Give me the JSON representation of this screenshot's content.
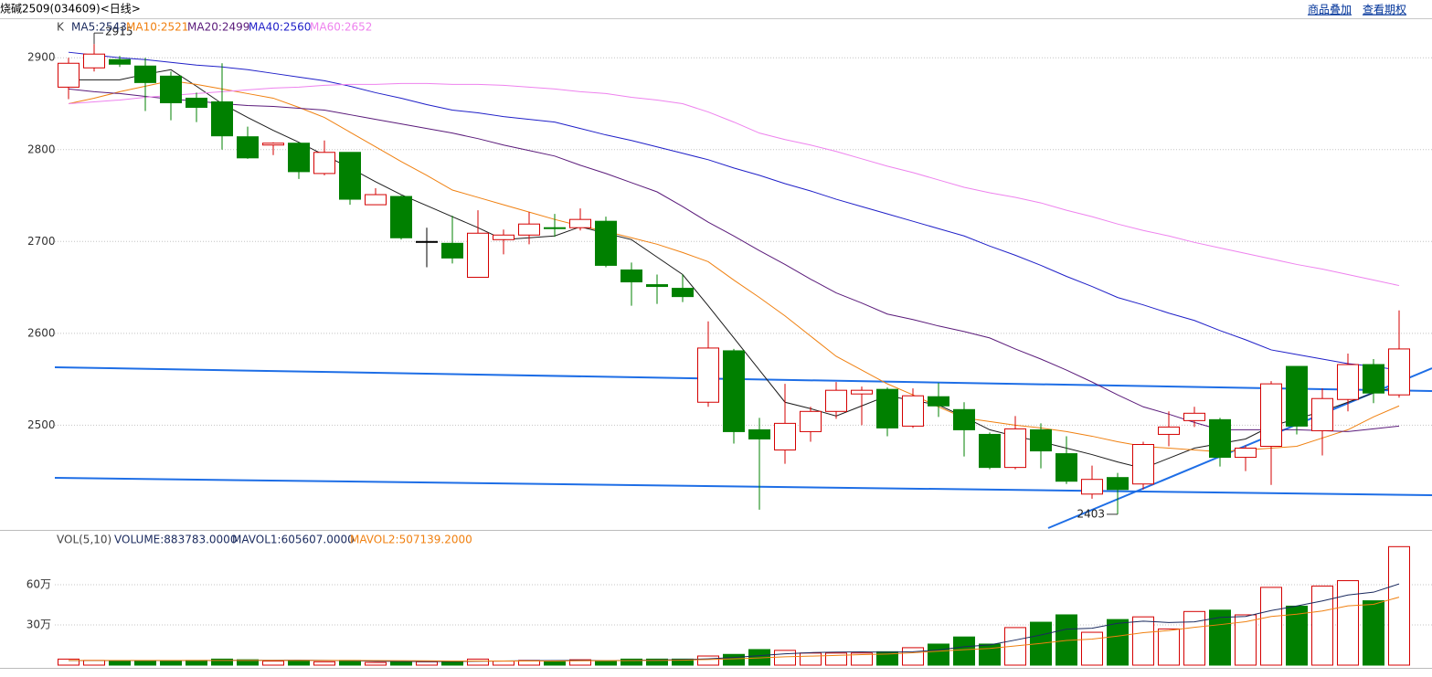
{
  "header": {
    "title": "烧碱2509(034609)<日线>",
    "links": [
      "商品叠加",
      "查看期权"
    ]
  },
  "chart_data": [
    {
      "type": "candlestick",
      "legend_prefix": "K",
      "ylim": [
        2386,
        2941
      ],
      "yticks": [
        2500,
        2600,
        2700,
        2800,
        2900
      ],
      "grid": true,
      "up_color": "#d40000",
      "down_color": "#008000",
      "flat_color": "#000000",
      "open": [
        2868,
        2889,
        2898,
        2891,
        2880,
        2856,
        2852,
        2814,
        2805,
        2807,
        2774,
        2797,
        2740,
        2749,
        2700,
        2698,
        2661,
        2702,
        2707,
        2715,
        2715,
        2722,
        2669,
        2653,
        2649,
        2525,
        2581,
        2495,
        2473,
        2493,
        2515,
        2534,
        2539,
        2499,
        2531,
        2517,
        2490,
        2454,
        2495,
        2469,
        2425,
        2443,
        2436,
        2490,
        2505,
        2506,
        2465,
        2477,
        2564,
        2494,
        2528,
        2566,
        2533
      ],
      "high": [
        2900,
        2915,
        2902,
        2900,
        2885,
        2862,
        2894,
        2825,
        2808,
        2808,
        2810,
        2797,
        2758,
        2750,
        2715,
        2728,
        2734,
        2713,
        2732,
        2730,
        2736,
        2727,
        2677,
        2664,
        2664,
        2613,
        2583,
        2508,
        2545,
        2520,
        2547,
        2542,
        2541,
        2540,
        2546,
        2525,
        2492,
        2510,
        2502,
        2488,
        2456,
        2448,
        2482,
        2515,
        2520,
        2508,
        2478,
        2548,
        2564,
        2540,
        2578,
        2572,
        2625
      ],
      "low": [
        2855,
        2885,
        2890,
        2842,
        2832,
        2830,
        2800,
        2790,
        2794,
        2768,
        2772,
        2740,
        2740,
        2702,
        2672,
        2676,
        2661,
        2686,
        2697,
        2705,
        2712,
        2672,
        2630,
        2632,
        2634,
        2520,
        2480,
        2408,
        2458,
        2482,
        2507,
        2500,
        2488,
        2497,
        2509,
        2466,
        2452,
        2452,
        2453,
        2436,
        2420,
        2403,
        2430,
        2477,
        2498,
        2455,
        2450,
        2435,
        2490,
        2467,
        2515,
        2524,
        2530
      ],
      "close": [
        2894,
        2904,
        2893,
        2873,
        2851,
        2846,
        2815,
        2791,
        2807,
        2776,
        2797,
        2746,
        2751,
        2704,
        2700,
        2682,
        2709,
        2707,
        2719,
        2714,
        2724,
        2674,
        2656,
        2651,
        2640,
        2584,
        2493,
        2485,
        2502,
        2515,
        2538,
        2538,
        2497,
        2532,
        2521,
        2495,
        2454,
        2496,
        2472,
        2439,
        2441,
        2430,
        2479,
        2498,
        2513,
        2465,
        2475,
        2545,
        2499,
        2529,
        2566,
        2535,
        2583
      ],
      "high_label": 2915,
      "low_label": 2403,
      "series": [
        {
          "name": "MA5:2543",
          "color": "#1a1a1a",
          "values": [
            2876,
            2876,
            2876,
            2882,
            2887,
            2869,
            2850,
            2835,
            2821,
            2808,
            2794,
            2780,
            2765,
            2751,
            2739,
            2727,
            2715,
            2702,
            2704,
            2706,
            2716,
            2709,
            2702,
            2683,
            2664,
            2630,
            2595,
            2560,
            2525,
            2518,
            2510,
            2521,
            2532,
            2527,
            2522,
            2509,
            2495,
            2488,
            2482,
            2475,
            2468,
            2460,
            2453,
            2464,
            2475,
            2480,
            2485,
            2499,
            2507,
            2515,
            2525,
            2535,
            2543
          ]
        },
        {
          "name": "MA10:2521",
          "color": "#f08010",
          "values": [
            2850,
            2856,
            2863,
            2869,
            2875,
            2871,
            2866,
            2861,
            2856,
            2846,
            2835,
            2819,
            2803,
            2787,
            2772,
            2756,
            2748,
            2740,
            2732,
            2724,
            2717,
            2711,
            2704,
            2697,
            2688,
            2678,
            2658,
            2639,
            2619,
            2597,
            2575,
            2560,
            2545,
            2533,
            2520,
            2508,
            2504,
            2500,
            2497,
            2493,
            2488,
            2482,
            2477,
            2475,
            2473,
            2471,
            2473,
            2475,
            2477,
            2486,
            2495,
            2509,
            2521
          ]
        },
        {
          "name": "MA20:2499",
          "color": "#5a1a7a",
          "values": [
            2866,
            2863,
            2861,
            2858,
            2855,
            2853,
            2850,
            2848,
            2847,
            2845,
            2843,
            2838,
            2833,
            2828,
            2823,
            2818,
            2812,
            2805,
            2799,
            2793,
            2783,
            2774,
            2764,
            2754,
            2738,
            2721,
            2706,
            2690,
            2675,
            2659,
            2644,
            2633,
            2621,
            2615,
            2608,
            2602,
            2595,
            2583,
            2572,
            2560,
            2547,
            2533,
            2520,
            2512,
            2503,
            2495,
            2495,
            2495,
            2495,
            2494,
            2493,
            2496,
            2499
          ]
        },
        {
          "name": "MA40:2560",
          "color": "#1f1fc8",
          "values": [
            2906,
            2903,
            2900,
            2898,
            2895,
            2892,
            2890,
            2887,
            2883,
            2879,
            2875,
            2869,
            2862,
            2856,
            2849,
            2843,
            2840,
            2836,
            2833,
            2830,
            2823,
            2816,
            2810,
            2803,
            2796,
            2789,
            2780,
            2772,
            2763,
            2755,
            2746,
            2738,
            2730,
            2722,
            2714,
            2706,
            2695,
            2685,
            2674,
            2662,
            2651,
            2639,
            2631,
            2622,
            2614,
            2603,
            2593,
            2582,
            2577,
            2572,
            2567,
            2564,
            2560
          ]
        },
        {
          "name": "MA60:2652",
          "color": "#ee82ee",
          "values": [
            2850,
            2852,
            2854,
            2857,
            2859,
            2861,
            2863,
            2865,
            2867,
            2868,
            2870,
            2871,
            2871,
            2872,
            2872,
            2871,
            2871,
            2870,
            2868,
            2866,
            2863,
            2861,
            2857,
            2854,
            2850,
            2841,
            2830,
            2818,
            2811,
            2805,
            2798,
            2790,
            2782,
            2775,
            2767,
            2759,
            2753,
            2748,
            2742,
            2734,
            2727,
            2719,
            2712,
            2706,
            2699,
            2693,
            2687,
            2681,
            2675,
            2670,
            2664,
            2658,
            2652
          ]
        }
      ]
    },
    {
      "type": "volume",
      "legend_prefix": "VOL(5,10)",
      "volume_label": "VOLUME:883783.0000",
      "ylim": [
        0,
        995000
      ],
      "yticks": [
        {
          "value": 300000,
          "label": "30万"
        },
        {
          "value": 600000,
          "label": "60万"
        }
      ],
      "grid": true,
      "values": [
        45000,
        35000,
        30000,
        30000,
        30000,
        35000,
        45000,
        40000,
        30000,
        35000,
        25000,
        35000,
        20000,
        25000,
        25000,
        30000,
        45000,
        30000,
        35000,
        30000,
        40000,
        30000,
        45000,
        45000,
        45000,
        68000,
        80000,
        116000,
        110000,
        90000,
        90000,
        90000,
        100000,
        130000,
        157000,
        210000,
        157000,
        280000,
        320000,
        375000,
        245000,
        340000,
        360000,
        270000,
        400000,
        410000,
        375000,
        580000,
        440000,
        590000,
        630000,
        480000,
        883783
      ],
      "series": [
        {
          "name": "MAVOL1:605607.0000",
          "color": "#1a2a5e",
          "values": [
            34000,
            34000,
            34000,
            34000,
            34000,
            34000,
            35000,
            36000,
            36000,
            37000,
            35000,
            33000,
            29000,
            28000,
            26000,
            27000,
            29000,
            31000,
            33000,
            34000,
            36000,
            33000,
            36000,
            38000,
            41000,
            47000,
            57000,
            71000,
            84000,
            93000,
            97000,
            99000,
            96000,
            100000,
            113000,
            137000,
            151000,
            187000,
            225000,
            268000,
            275000,
            312000,
            328000,
            318000,
            323000,
            356000,
            363000,
            407000,
            441000,
            479000,
            523000,
            544000,
            605607
          ]
        },
        {
          "name": "MAVOL2:507139.2000",
          "color": "#f08010",
          "values": [
            35000,
            35000,
            35000,
            35000,
            35000,
            35000,
            35000,
            35000,
            35000,
            35000,
            35000,
            35000,
            34000,
            33000,
            32000,
            31000,
            31000,
            31000,
            31000,
            31000,
            32000,
            33000,
            34000,
            35000,
            37000,
            42000,
            47000,
            54000,
            62000,
            67000,
            72000,
            78000,
            83000,
            92000,
            104000,
            115000,
            124000,
            143000,
            162000,
            184000,
            194000,
            216000,
            242000,
            258000,
            282000,
            302000,
            324000,
            363000,
            380000,
            404000,
            442000,
            453000,
            507139
          ]
        }
      ]
    }
  ]
}
